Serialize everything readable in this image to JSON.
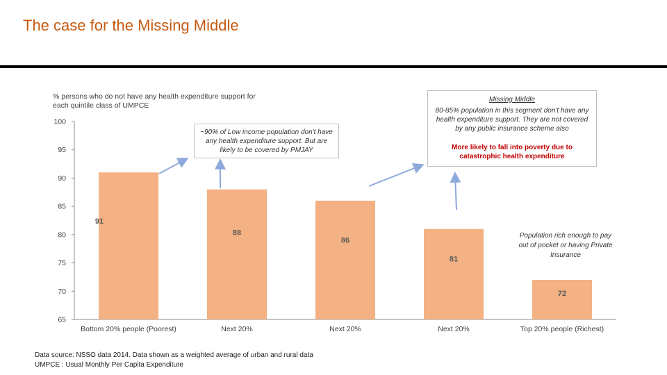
{
  "slide": {
    "title": "The case for the Missing Middle"
  },
  "chart_data": {
    "type": "bar",
    "title": "% persons who do not have any health expenditure support for each quintile class of UMPCE",
    "categories": [
      "Bottom 20% people (Poorest)",
      "Next 20%",
      "Next 20%",
      "Next 20%",
      "Top 20% people (Richest)"
    ],
    "values": [
      91,
      88,
      86,
      81,
      72
    ],
    "data_labels": [
      "91",
      "88",
      "86",
      "81",
      "72"
    ],
    "ylim": [
      65,
      100
    ],
    "yticks": [
      65,
      70,
      75,
      80,
      85,
      90,
      95,
      100
    ],
    "grid": false,
    "bar_color": "#f4b183",
    "xlabel": "",
    "ylabel": ""
  },
  "annotations": {
    "low_income": "~90% of Low income population don't have any health expenditure support. But are likely to be covered by PMJAY",
    "missing_middle_title": "Missing Middle",
    "missing_middle_body": "80-85% population in this segment don't have any health expenditure support. They are not covered by any public insurance scheme also",
    "missing_middle_warning": "More likely to fall into poverty due to catastrophic health expenditure",
    "rich": "Population rich enough to pay out of pocket or having Private Insurance"
  },
  "footnote": {
    "line1": "Data source: NSSO data 2014. Data shown as a weighted average of urban and rural data",
    "line2": "UMPCE : Usual Monthly Per Capita Expenditure"
  },
  "colors": {
    "title": "#c55a11",
    "warning": "#c00000",
    "arrow": "#8ea9db"
  }
}
